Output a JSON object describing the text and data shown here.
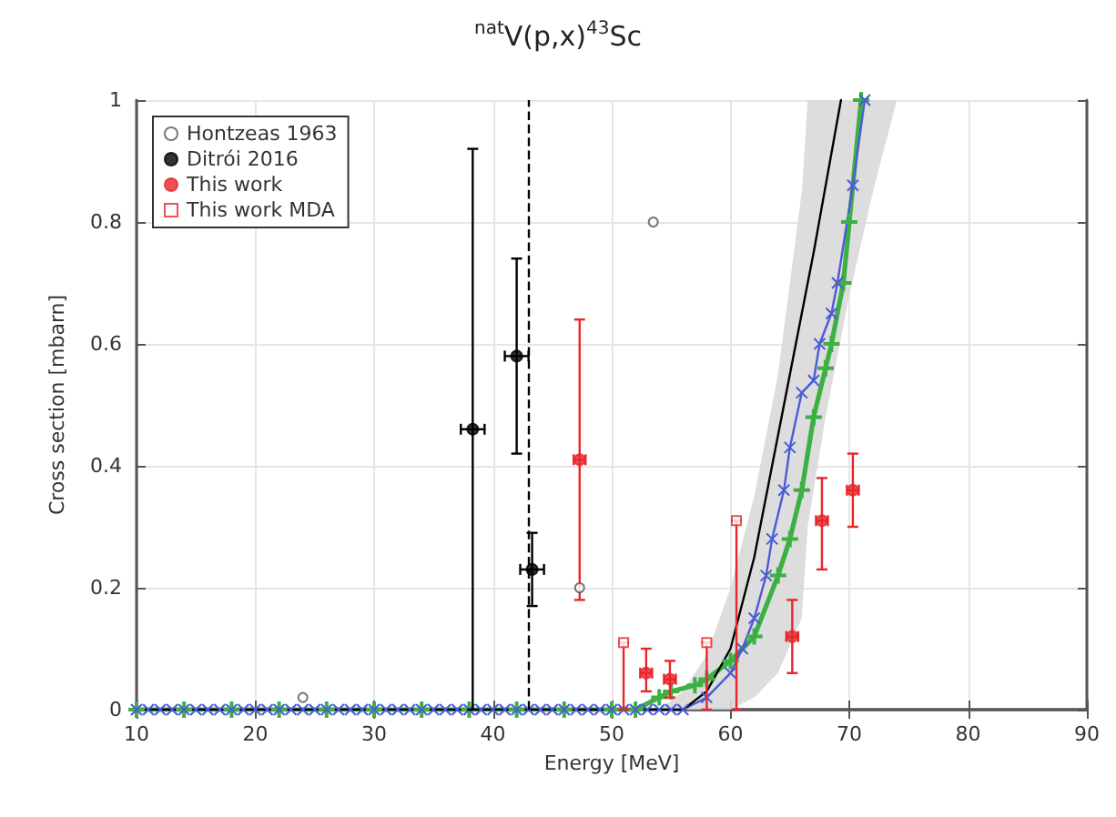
{
  "chart_data": {
    "type": "scatter",
    "title": "$^{nat}$V(p,x)$^{43}$Sc",
    "xlabel": "Energy [MeV]",
    "ylabel": "Cross section [mbarn]",
    "xlim": [
      10,
      90
    ],
    "xticks": [
      10,
      20,
      30,
      40,
      50,
      60,
      70,
      80,
      90
    ],
    "ylim": [
      0,
      1
    ],
    "yticks": [
      0,
      0.2,
      0.4,
      0.6,
      0.8,
      1
    ],
    "grid": true,
    "legend": "top left",
    "ref_lines": [
      {
        "axis": "x",
        "value": 43,
        "color": "#000000",
        "line_style": "dashed"
      }
    ],
    "series": [
      {
        "type": "line",
        "color": "#3cb043",
        "marker": "cross",
        "x": [
          10,
          14,
          18,
          22,
          26,
          30,
          34,
          38,
          42,
          46,
          50,
          52,
          54,
          55,
          57,
          58,
          60,
          62,
          64,
          65,
          66,
          67,
          68,
          68.5,
          69.5,
          70,
          71
        ],
        "values": [
          0,
          0,
          0,
          0,
          0,
          0,
          0,
          0,
          0,
          0,
          0,
          0,
          0.02,
          0.03,
          0.04,
          0.05,
          0.08,
          0.12,
          0.22,
          0.28,
          0.36,
          0.48,
          0.56,
          0.6,
          0.7,
          0.8,
          1
        ]
      },
      {
        "type": "line",
        "color": "#4b5bd6",
        "marker": "cross",
        "x": [
          10,
          11,
          12,
          13,
          14,
          15,
          16,
          17,
          18,
          19,
          20,
          21,
          22,
          23,
          24,
          25,
          26,
          27,
          28,
          29,
          30,
          31,
          32,
          33,
          34,
          35,
          36,
          37,
          38,
          39,
          40,
          41,
          42,
          43,
          44,
          45,
          46,
          47,
          48,
          49,
          50,
          51,
          52,
          53,
          54,
          55,
          56,
          58,
          60,
          61,
          62,
          63,
          63.5,
          64.5,
          65,
          66,
          67,
          67.5,
          68.5,
          69,
          70.3,
          71.3
        ],
        "values": [
          0,
          0,
          0,
          0,
          0,
          0,
          0,
          0,
          0,
          0,
          0,
          0,
          0,
          0,
          0,
          0,
          0,
          0,
          0,
          0,
          0,
          0,
          0,
          0,
          0,
          0,
          0,
          0,
          0,
          0,
          0,
          0,
          0,
          0,
          0,
          0,
          0,
          0,
          0,
          0,
          0,
          0,
          0,
          0,
          0,
          0,
          0,
          0.02,
          0.06,
          0.1,
          0.15,
          0.22,
          0.28,
          0.36,
          0.43,
          0.52,
          0.54,
          0.6,
          0.65,
          0.7,
          0.86,
          1
        ]
      },
      {
        "type": "area",
        "color": "#d9d9d9",
        "x": [
          54,
          56,
          58,
          60,
          62,
          64,
          66,
          66.5,
          68,
          70,
          72,
          74
        ],
        "values": [
          null,
          null,
          null,
          null,
          null,
          null,
          null,
          null,
          null,
          null,
          null,
          null
        ],
        "lower": [
          0,
          0,
          0,
          0,
          0.02,
          0.06,
          0.15,
          0.3,
          0.48,
          0.68,
          0.85,
          1
        ],
        "upper": [
          0,
          0.03,
          0.09,
          0.2,
          0.35,
          0.55,
          0.85,
          1,
          1,
          1,
          1,
          1
        ]
      },
      {
        "type": "line",
        "color": "#000000",
        "marker": "none",
        "x": [
          10,
          56,
          58,
          60,
          62,
          64.5,
          67,
          69.3
        ],
        "values": [
          0,
          0,
          0.03,
          0.1,
          0.25,
          0.5,
          0.75,
          1
        ]
      },
      {
        "name": "Hontzeas 1963",
        "color": "#555555",
        "marker": "circle",
        "x": [
          24,
          47.3,
          53.5
        ],
        "values": [
          0.02,
          0.2,
          0.8
        ]
      },
      {
        "name": "Ditrói 2016",
        "color": "#000000",
        "marker": "circle",
        "x": [
          38.3,
          42,
          43.3
        ],
        "values": [
          0.46,
          0.58,
          0.23
        ],
        "errors": [
          [
            0,
            0.92
          ],
          [
            0.42,
            0.74
          ],
          [
            0.17,
            0.29
          ]
        ],
        "xerrors": [
          1,
          1,
          1
        ]
      },
      {
        "name": "This work",
        "color": "#e8262a",
        "marker": "circle",
        "x": [
          47.3,
          52.9,
          54.9,
          65.2,
          67.7,
          70.3
        ],
        "values": [
          0.41,
          0.06,
          0.05,
          0.12,
          0.31,
          0.36
        ],
        "errors": [
          [
            0.18,
            0.64
          ],
          [
            0.03,
            0.1
          ],
          [
            0.02,
            0.08
          ],
          [
            0.06,
            0.18
          ],
          [
            0.23,
            0.38
          ],
          [
            0.3,
            0.42
          ]
        ],
        "xerrors": [
          0.5,
          0.5,
          0.5,
          0.5,
          0.5,
          0.5
        ]
      },
      {
        "name": "This work MDA",
        "color": "#e8262a",
        "marker": "square",
        "x": [
          51,
          58,
          60.5
        ],
        "values": [
          0.11,
          0.11,
          0.31
        ],
        "errors": [
          [
            0,
            0.11
          ],
          [
            0,
            0.11
          ],
          [
            0,
            0.31
          ]
        ]
      }
    ]
  }
}
